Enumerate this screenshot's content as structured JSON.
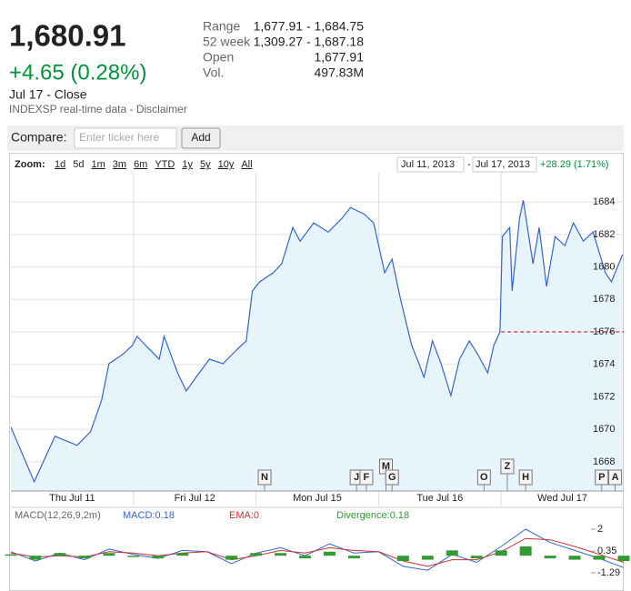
{
  "header": {
    "price": "1,680.91",
    "change": "+4.65 (0.28%)",
    "date": "Jul 17 - Close",
    "source": "INDEXSP real-time data - Disclaimer"
  },
  "stats": {
    "rows": [
      [
        "Range",
        "1,677.91 - 1,684.75"
      ],
      [
        "52 week",
        "1,309.27 - 1,687.18"
      ],
      [
        "Open",
        "1,677.91"
      ],
      [
        "Vol.",
        "497.83M"
      ]
    ]
  },
  "compare": {
    "label": "Compare:",
    "placeholder": "Enter ticker here",
    "button": "Add"
  },
  "toolbar": {
    "zoom_label": "Zoom:",
    "zoom": [
      "1d",
      "5d",
      "1m",
      "3m",
      "6m",
      "YTD",
      "1y",
      "5y",
      "10y",
      "All"
    ],
    "from": "Jul 11, 2013",
    "separator": "-",
    "to": "Jul 17, 2013",
    "change": "+28.29 (1.71%)"
  },
  "chart_data": [
    {
      "type": "line",
      "xlim": [
        0,
        5
      ],
      "ylim": [
        1666.2,
        1685.8
      ],
      "yticks": [
        1668,
        1670,
        1672,
        1674,
        1676,
        1678,
        1680,
        1682,
        1684
      ],
      "xticks": [
        {
          "value": 0.5,
          "label": "Thu Jul 11"
        },
        {
          "value": 1.5,
          "label": "Fri Jul 12"
        },
        {
          "value": 2.5,
          "label": "Mon Jul 15"
        },
        {
          "value": 3.5,
          "label": "Tue Jul 16"
        },
        {
          "value": 4.5,
          "label": "Wed Jul 17"
        }
      ],
      "xgrid": [
        1,
        2,
        3,
        4
      ],
      "grid": true,
      "x": [
        0,
        0.19,
        0.36,
        0.54,
        0.65,
        0.74,
        0.8,
        0.91,
        0.99,
        1.03,
        1.1,
        1.21,
        1.25,
        1.36,
        1.43,
        1.51,
        1.62,
        1.73,
        1.84,
        1.92,
        1.97,
        2.03,
        2.14,
        2.21,
        2.3,
        2.36,
        2.47,
        2.59,
        2.7,
        2.77,
        2.88,
        2.96,
        3.05,
        3.11,
        3.18,
        3.27,
        3.33,
        3.37,
        3.44,
        3.51,
        3.59,
        3.66,
        3.74,
        3.81,
        3.89,
        3.94,
        3.99,
        4.01,
        4.07,
        4.09,
        4.15,
        4.18,
        4.26,
        4.31,
        4.37,
        4.44,
        4.52,
        4.59,
        4.67,
        4.75,
        4.85,
        4.9,
        4.99
      ],
      "series": [
        {
          "color": "#3366cc",
          "values": [
            1670.13,
            1666.77,
            1669.57,
            1669.01,
            1669.85,
            1671.8,
            1674.04,
            1674.6,
            1675.16,
            1675.72,
            1675.16,
            1674.32,
            1675.72,
            1673.48,
            1672.36,
            1673.2,
            1674.32,
            1674.04,
            1674.88,
            1675.44,
            1678.52,
            1679.08,
            1679.64,
            1680.2,
            1682.43,
            1681.59,
            1682.71,
            1682.15,
            1682.99,
            1683.66,
            1683.27,
            1682.71,
            1679.64,
            1680.48,
            1677.96,
            1675.16,
            1674.04,
            1673.2,
            1675.44,
            1674.04,
            1672.08,
            1674.32,
            1675.44,
            1674.6,
            1673.48,
            1675.16,
            1676.0,
            1681.87,
            1682.43,
            1678.52,
            1682.99,
            1684.11,
            1680.2,
            1682.43,
            1678.8,
            1681.87,
            1681.31,
            1682.71,
            1681.59,
            1682.15,
            1679.64,
            1679.08,
            1680.76
          ]
        }
      ],
      "reference": {
        "value": 1676,
        "color": "#cc0000",
        "x": [
          4,
          5
        ]
      },
      "flags": [
        {
          "label": "N",
          "x": 2.07
        },
        {
          "label": "J",
          "x": 2.82
        },
        {
          "label": "F",
          "x": 2.9
        },
        {
          "label": "M",
          "x": 3.06
        },
        {
          "label": "G",
          "x": 3.11
        },
        {
          "label": "O",
          "x": 3.86
        },
        {
          "label": "Z",
          "x": 4.05
        },
        {
          "label": "H",
          "x": 4.2
        },
        {
          "label": "P",
          "x": 4.82
        },
        {
          "label": "A",
          "x": 4.93
        }
      ]
    },
    {
      "type": "line",
      "title": "MACD(12,26,9,2m)",
      "xlim": [
        0,
        5
      ],
      "ylim": [
        -2.66,
        2.48
      ],
      "yticks": [
        2,
        0.35,
        -1.29
      ],
      "x": [
        0,
        0.2,
        0.4,
        0.6,
        0.8,
        1,
        1.2,
        1.4,
        1.6,
        1.8,
        2,
        2.2,
        2.4,
        2.6,
        2.8,
        3,
        3.2,
        3.4,
        3.6,
        3.8,
        4,
        4.2,
        4.4,
        4.6,
        4.8,
        5
      ],
      "series": [
        {
          "name": "MACD:0.18",
          "color": "#3366cc",
          "kind": "line",
          "values": [
            0.3,
            -0.4,
            0.2,
            -0.3,
            0.5,
            0.1,
            -0.2,
            0.4,
            0.3,
            -0.6,
            0.2,
            0.6,
            0.0,
            0.9,
            0.2,
            0.3,
            -0.8,
            -1.1,
            0.1,
            -0.5,
            0.7,
            2.0,
            1.0,
            0.4,
            -0.2,
            -0.9
          ]
        },
        {
          "name": "EMA:0",
          "color": "#cc3333",
          "kind": "line",
          "values": [
            0.2,
            -0.1,
            0.0,
            -0.1,
            0.3,
            0.2,
            0.0,
            0.2,
            0.3,
            -0.3,
            0.0,
            0.4,
            0.2,
            0.6,
            0.4,
            0.3,
            -0.4,
            -0.8,
            -0.3,
            -0.3,
            0.3,
            1.3,
            1.2,
            0.7,
            0.1,
            -0.5
          ]
        },
        {
          "name": "Divergence:0.18",
          "color": "#339933",
          "kind": "bar",
          "values": [
            0.1,
            -0.3,
            0.2,
            -0.2,
            0.2,
            -0.1,
            -0.2,
            0.2,
            0.0,
            -0.3,
            0.2,
            0.2,
            -0.2,
            0.3,
            -0.2,
            0.0,
            -0.4,
            -0.3,
            0.4,
            -0.2,
            0.4,
            0.7,
            -0.2,
            -0.3,
            -0.3,
            -0.4
          ]
        }
      ]
    }
  ]
}
